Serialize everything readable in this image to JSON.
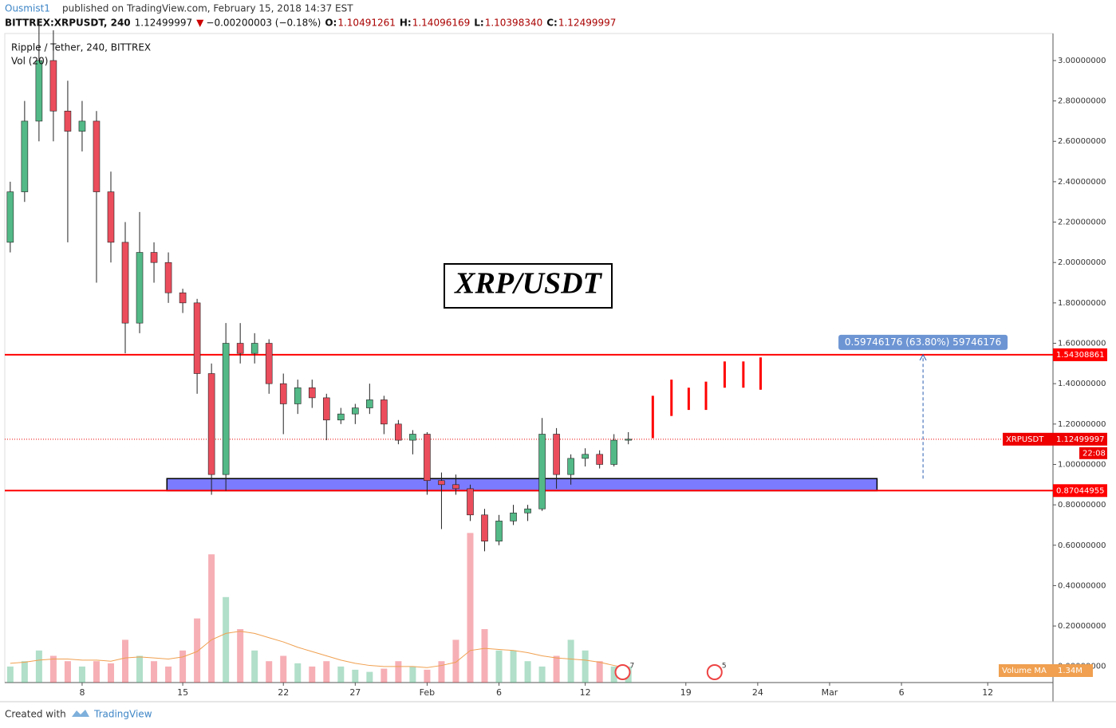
{
  "header": {
    "author": "Ousmist1",
    "published": "published on TradingView.com, February 15, 2018 14:37 EST",
    "symbol": "BITTREX:XRPUSDT, 240",
    "price": "1.12499997",
    "arrow": "▼",
    "change": "−0.00200003 (−0.18%)",
    "ohlc": [
      {
        "key": "O:",
        "value": "1.10491261"
      },
      {
        "key": "H:",
        "value": "1.14096169"
      },
      {
        "key": "L:",
        "value": "1.10398340"
      },
      {
        "key": "C:",
        "value": "1.12499997"
      }
    ]
  },
  "chart_data": {
    "type": "candlestick",
    "legend": "Ripple / Tether, 240, BITTREX",
    "volume_legend": "Vol (20)",
    "title": "XRP/USDT",
    "up_color": "#53b987",
    "down_color": "#eb4d5c",
    "x": [
      3,
      4,
      5,
      6,
      7,
      8,
      9,
      10,
      11,
      12,
      13,
      14,
      15,
      16,
      17,
      18,
      19,
      20,
      21,
      22,
      23,
      24,
      25,
      26,
      27,
      28,
      29,
      30,
      31,
      32,
      33,
      34,
      35,
      36,
      37,
      38,
      39,
      40,
      41,
      42,
      43,
      44,
      45,
      46
    ],
    "open": [
      2.1,
      2.35,
      2.7,
      3.0,
      2.75,
      2.65,
      2.7,
      2.35,
      2.1,
      1.7,
      2.05,
      2.0,
      1.85,
      1.8,
      1.45,
      0.95,
      1.6,
      1.55,
      1.6,
      1.4,
      1.3,
      1.38,
      1.33,
      1.22,
      1.25,
      1.28,
      1.32,
      1.2,
      1.12,
      1.15,
      0.92,
      0.9,
      0.88,
      0.75,
      0.62,
      0.72,
      0.76,
      0.78,
      1.15,
      0.95,
      1.03,
      1.05,
      1.0,
      1.12
    ],
    "high": [
      2.4,
      2.8,
      3.2,
      3.15,
      2.9,
      2.8,
      2.75,
      2.45,
      2.2,
      2.25,
      2.1,
      2.05,
      1.87,
      1.82,
      1.5,
      1.7,
      1.7,
      1.65,
      1.62,
      1.45,
      1.42,
      1.42,
      1.35,
      1.28,
      1.3,
      1.4,
      1.34,
      1.22,
      1.17,
      1.16,
      0.96,
      0.95,
      0.9,
      0.78,
      0.75,
      0.8,
      0.8,
      1.23,
      1.18,
      1.05,
      1.08,
      1.07,
      1.15,
      1.16
    ],
    "low": [
      2.05,
      2.3,
      2.6,
      2.6,
      2.1,
      2.55,
      1.9,
      2.0,
      1.55,
      1.65,
      1.9,
      1.8,
      1.75,
      1.35,
      0.85,
      0.87,
      1.5,
      1.5,
      1.35,
      1.15,
      1.25,
      1.28,
      1.12,
      1.2,
      1.2,
      1.25,
      1.15,
      1.1,
      1.05,
      0.85,
      0.68,
      0.85,
      0.72,
      0.57,
      0.6,
      0.7,
      0.72,
      0.77,
      0.88,
      0.9,
      0.99,
      0.98,
      0.99,
      1.1
    ],
    "close": [
      2.35,
      2.7,
      3.0,
      2.75,
      2.65,
      2.7,
      2.35,
      2.1,
      1.7,
      2.05,
      2.0,
      1.85,
      1.8,
      1.45,
      0.95,
      1.6,
      1.55,
      1.6,
      1.4,
      1.3,
      1.38,
      1.33,
      1.22,
      1.25,
      1.28,
      1.32,
      1.2,
      1.12,
      1.15,
      0.92,
      0.9,
      0.88,
      0.75,
      0.62,
      0.72,
      0.76,
      0.78,
      1.15,
      0.95,
      1.03,
      1.05,
      1.0,
      1.12,
      1.125
    ],
    "volume": [
      1.5,
      2,
      3,
      2.5,
      2,
      1.5,
      2,
      1.8,
      4,
      2.5,
      2,
      1.5,
      3,
      6,
      12,
      8,
      5,
      3,
      2,
      2.5,
      1.8,
      1.5,
      2,
      1.5,
      1.2,
      1,
      1.3,
      2,
      1.5,
      1.2,
      2,
      4,
      14,
      5,
      3,
      3,
      2,
      1.5,
      2.5,
      4,
      3,
      2,
      1.5,
      1.5
    ],
    "volume_ma": [
      1.8,
      1.9,
      2.1,
      2.2,
      2.2,
      2.1,
      2.1,
      2.0,
      2.3,
      2.4,
      2.3,
      2.2,
      2.4,
      2.9,
      4.0,
      4.6,
      4.8,
      4.6,
      4.2,
      3.8,
      3.3,
      2.9,
      2.5,
      2.1,
      1.8,
      1.6,
      1.5,
      1.5,
      1.5,
      1.4,
      1.6,
      1.9,
      3.0,
      3.2,
      3.1,
      3.0,
      2.8,
      2.5,
      2.3,
      2.2,
      2.1,
      1.9,
      1.6,
      1.34
    ],
    "volume_ma_label": "Volume MA",
    "volume_ma_value": "1.34M",
    "projection": {
      "color": "#ff0000",
      "x": [
        47.7,
        49,
        50.2,
        51.4,
        52.7,
        54,
        55.2
      ],
      "low": [
        1.13,
        1.24,
        1.27,
        1.27,
        1.38,
        1.38,
        1.37
      ],
      "high": [
        1.34,
        1.42,
        1.38,
        1.41,
        1.51,
        1.51,
        1.53
      ]
    },
    "levels": [
      1.54308861,
      0.87044955
    ],
    "level_color": "#ff0000",
    "last": {
      "name": "XRPUSDT",
      "value": 1.12499997,
      "countdown": "22:08"
    },
    "zone": {
      "x": [
        13.9,
        63.3
      ],
      "y": [
        0.87,
        0.93
      ],
      "color": "#7b7bff"
    },
    "measure": {
      "x": 66.5,
      "y": [
        0.93,
        1.54308861
      ],
      "label": "0.59746176 (63.80%) 59746176"
    },
    "events": [
      {
        "x": 45.6,
        "label": "7"
      },
      {
        "x": 52,
        "label": "5"
      }
    ],
    "xlim": [
      2.62,
      75.54
    ],
    "ylim": [
      -0.08,
      3.134
    ],
    "xticks": [
      8,
      15,
      22,
      27,
      {
        "value": 32,
        "label": "Feb"
      },
      {
        "value": 37,
        "label": "6"
      },
      {
        "value": 43,
        "label": "12"
      },
      {
        "value": 50,
        "label": "19"
      },
      {
        "value": 55,
        "label": "24"
      },
      {
        "value": 60,
        "label": "Mar"
      },
      {
        "value": 65,
        "label": "6"
      },
      {
        "value": 71,
        "label": "12"
      }
    ],
    "yticks": [
      {
        "value": 0,
        "label": "0.00000000"
      },
      {
        "value": 0.2,
        "label": "0.20000000"
      },
      {
        "value": 0.4,
        "label": "0.40000000"
      },
      {
        "value": 0.6,
        "label": "0.60000000"
      },
      {
        "value": 0.8,
        "label": "0.80000000"
      },
      {
        "value": 1,
        "label": "1.00000000"
      },
      {
        "value": 1.2,
        "label": "1.20000000"
      },
      {
        "value": 1.4,
        "label": "1.40000000"
      },
      {
        "value": 1.6,
        "label": "1.60000000"
      },
      {
        "value": 1.8,
        "label": "1.80000000"
      },
      {
        "value": 2,
        "label": "2.00000000"
      },
      {
        "value": 2.2,
        "label": "2.20000000"
      },
      {
        "value": 2.4,
        "label": "2.40000000"
      },
      {
        "value": 2.6,
        "label": "2.60000000"
      },
      {
        "value": 2.8,
        "label": "2.80000000"
      },
      {
        "value": 3,
        "label": "3.00000000"
      }
    ]
  },
  "footer": {
    "created": "Created with",
    "brand": "TradingView"
  }
}
